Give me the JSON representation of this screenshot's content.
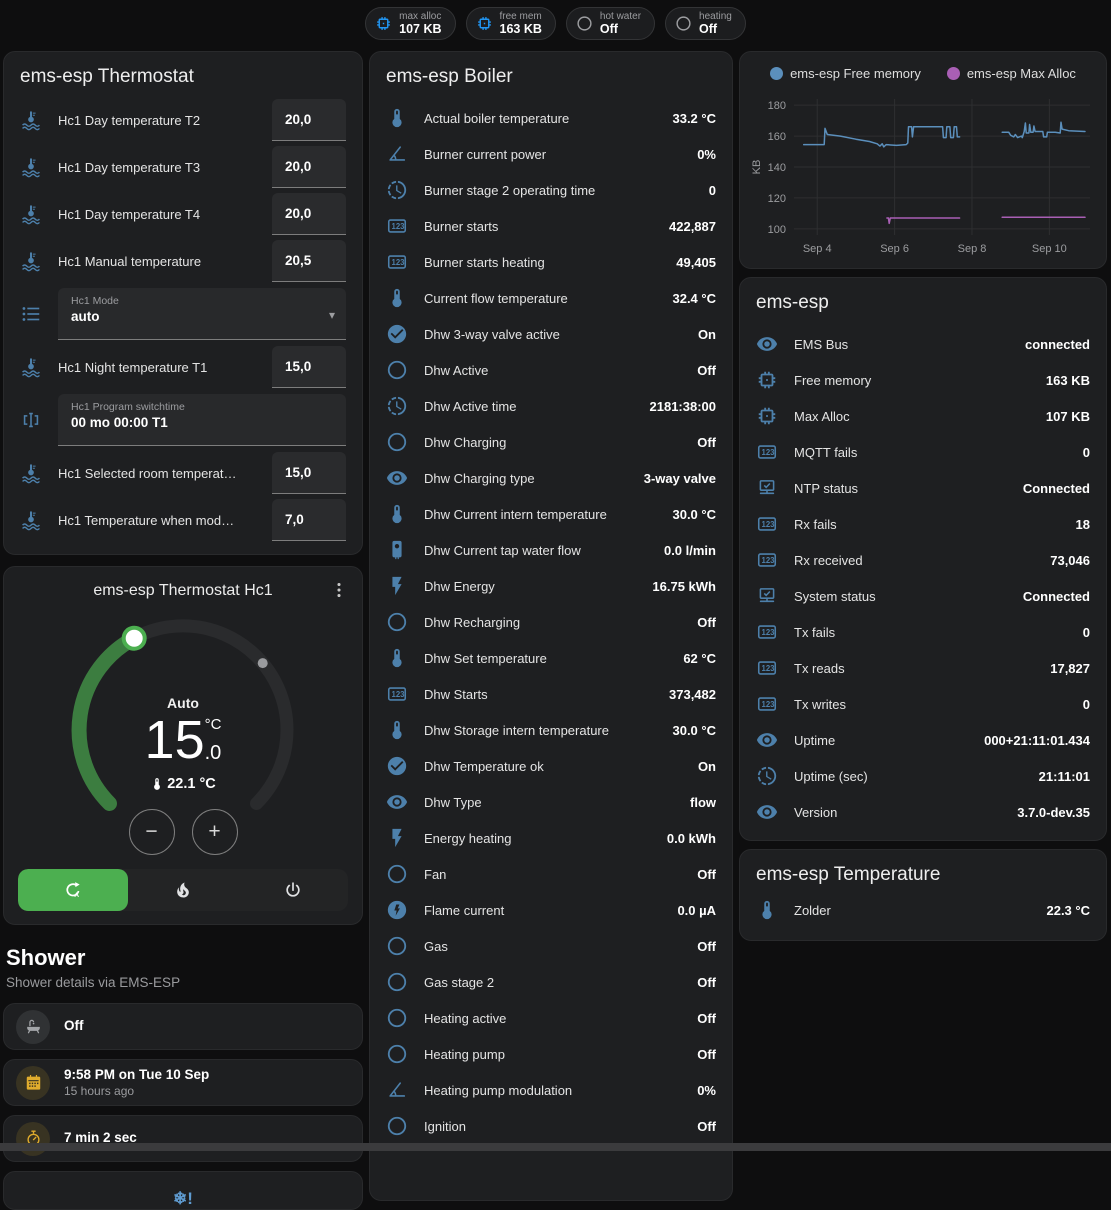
{
  "chips": [
    {
      "icon": "memory",
      "icon_color": "#2196f3",
      "label": "max alloc",
      "value": "107 KB"
    },
    {
      "icon": "memory",
      "icon_color": "#2196f3",
      "label": "free mem",
      "value": "163 KB"
    },
    {
      "icon": "circle-outline",
      "icon_color": "#9e9fa2",
      "label": "hot water",
      "value": "Off"
    },
    {
      "icon": "circle-outline",
      "icon_color": "#9e9fa2",
      "label": "heating",
      "value": "Off"
    }
  ],
  "thermostat_card": {
    "title": "ems-esp Thermostat",
    "rows": [
      {
        "type": "number",
        "icon": "coolant-thermometer",
        "label": "Hc1 Day temperature T2",
        "value": "20,0"
      },
      {
        "type": "number",
        "icon": "coolant-thermometer",
        "label": "Hc1 Day temperature T3",
        "value": "20,0"
      },
      {
        "type": "number",
        "icon": "coolant-thermometer",
        "label": "Hc1 Day temperature T4",
        "value": "20,0"
      },
      {
        "type": "number",
        "icon": "coolant-thermometer",
        "label": "Hc1 Manual temperature",
        "value": "20,5"
      },
      {
        "type": "select",
        "icon": "list",
        "label": "Hc1 Mode",
        "value": "auto"
      },
      {
        "type": "number",
        "icon": "coolant-thermometer",
        "label": "Hc1 Night temperature T1",
        "value": "15,0"
      },
      {
        "type": "text",
        "icon": "switchtime",
        "label": "Hc1 Program switchtime",
        "value": "00 mo 00:00 T1"
      },
      {
        "type": "number",
        "icon": "coolant-thermometer",
        "label": "Hc1 Selected room temperat…",
        "value": "15,0"
      },
      {
        "type": "number",
        "icon": "coolant-thermometer",
        "label": "Hc1 Temperature when mod…",
        "value": "7,0"
      }
    ]
  },
  "dial_card": {
    "title": "ems-esp Thermostat Hc1",
    "mode_label": "Auto",
    "target_int": "15",
    "target_unit": "°C",
    "target_frac": ".0",
    "current_icon": "thermometer",
    "current_temp": "22.1 °C",
    "decrease_label": "−",
    "increase_label": "+",
    "modes": [
      {
        "icon": "autorenew",
        "active": true
      },
      {
        "icon": "fire"
      },
      {
        "icon": "power"
      }
    ]
  },
  "shower": {
    "title": "Shower",
    "subtitle": "Shower details via EMS-ESP",
    "rows": [
      {
        "icon": "bathtub",
        "icon_color": "#a2a5a8",
        "circle_color": "#303234",
        "value": "Off",
        "sub": ""
      },
      {
        "icon": "calendar",
        "icon_color": "#e0ac2d",
        "circle_color": "#383322",
        "value": "9:58 PM on Tue 10 Sep",
        "sub": "15 hours ago"
      },
      {
        "icon": "timer",
        "icon_color": "#e0ac2d",
        "circle_color": "#383322",
        "value": "7 min 2 sec",
        "sub": ""
      }
    ],
    "alert_icon": "snowflake-alert"
  },
  "boiler_card": {
    "title": "ems-esp Boiler",
    "rows": [
      {
        "icon": "thermometer",
        "label": "Actual boiler temperature",
        "value": "33.2 °C"
      },
      {
        "icon": "angle",
        "label": "Burner current power",
        "value": "0%"
      },
      {
        "icon": "progress-clock",
        "label": "Burner stage 2 operating time",
        "value": "0"
      },
      {
        "icon": "counter",
        "label": "Burner starts",
        "value": "422,887"
      },
      {
        "icon": "counter",
        "label": "Burner starts heating",
        "value": "49,405"
      },
      {
        "icon": "thermometer",
        "label": "Current flow temperature",
        "value": "32.4 °C"
      },
      {
        "icon": "check-circle",
        "label": "Dhw 3-way valve active",
        "value": "On"
      },
      {
        "icon": "circle-outline",
        "label": "Dhw Active",
        "value": "Off"
      },
      {
        "icon": "progress-clock",
        "label": "Dhw Active time",
        "value": "2181:38:00"
      },
      {
        "icon": "circle-outline",
        "label": "Dhw Charging",
        "value": "Off"
      },
      {
        "icon": "eye",
        "label": "Dhw Charging type",
        "value": "3-way valve"
      },
      {
        "icon": "thermometer",
        "label": "Dhw Current intern temperature",
        "value": "30.0 °C"
      },
      {
        "icon": "water-boiler",
        "label": "Dhw Current tap water flow",
        "value": "0.0 l/min"
      },
      {
        "icon": "flash",
        "label": "Dhw Energy",
        "value": "16.75 kWh"
      },
      {
        "icon": "circle-outline",
        "label": "Dhw Recharging",
        "value": "Off"
      },
      {
        "icon": "thermometer",
        "label": "Dhw Set temperature",
        "value": "62 °C"
      },
      {
        "icon": "counter",
        "label": "Dhw Starts",
        "value": "373,482"
      },
      {
        "icon": "thermometer",
        "label": "Dhw Storage intern temperature",
        "value": "30.0 °C"
      },
      {
        "icon": "check-circle",
        "label": "Dhw Temperature ok",
        "value": "On"
      },
      {
        "icon": "eye",
        "label": "Dhw Type",
        "value": "flow"
      },
      {
        "icon": "flash",
        "label": "Energy heating",
        "value": "0.0 kWh"
      },
      {
        "icon": "circle-outline",
        "label": "Fan",
        "value": "Off"
      },
      {
        "icon": "flash-circle",
        "label": "Flame current",
        "value": "0.0 µA"
      },
      {
        "icon": "circle-outline",
        "label": "Gas",
        "value": "Off"
      },
      {
        "icon": "circle-outline",
        "label": "Gas stage 2",
        "value": "Off"
      },
      {
        "icon": "circle-outline",
        "label": "Heating active",
        "value": "Off"
      },
      {
        "icon": "circle-outline",
        "label": "Heating pump",
        "value": "Off"
      },
      {
        "icon": "angle",
        "label": "Heating pump modulation",
        "value": "0%"
      },
      {
        "icon": "circle-outline",
        "label": "Ignition",
        "value": "Off"
      }
    ]
  },
  "chart_data": {
    "type": "line",
    "title": "",
    "xlabel": "",
    "ylabel": "KB",
    "ylim": [
      96,
      184
    ],
    "xlim": [
      3.4,
      11.05
    ],
    "y_ticks": [
      100,
      120,
      140,
      160,
      180
    ],
    "x_ticks": [
      {
        "v": 4,
        "label": "Sep 4"
      },
      {
        "v": 6,
        "label": "Sep 6"
      },
      {
        "v": 8,
        "label": "Sep 8"
      },
      {
        "v": 10,
        "label": "Sep 10"
      }
    ],
    "grid": true,
    "legend_position": "top",
    "series": [
      {
        "name": "ems-esp Free memory",
        "color": "#5b8fbc",
        "segments": [
          [
            [
              3.65,
              154.5
            ],
            [
              4.18,
              154.5
            ],
            [
              4.2,
              165
            ],
            [
              4.26,
              161
            ],
            [
              4.6,
              160
            ],
            [
              5.0,
              158
            ],
            [
              5.35,
              156.5
            ],
            [
              5.55,
              155
            ],
            [
              5.62,
              153.5
            ],
            [
              5.68,
              155
            ],
            [
              5.72,
              153
            ],
            [
              5.78,
              154.5
            ],
            [
              6.05,
              154
            ],
            [
              6.3,
              154.5
            ],
            [
              6.34,
              155.5
            ],
            [
              6.36,
              166
            ],
            [
              6.44,
              166
            ],
            [
              6.46,
              159.5
            ],
            [
              6.49,
              166
            ],
            [
              7.1,
              166
            ],
            [
              7.24,
              166
            ],
            [
              7.26,
              159
            ],
            [
              7.33,
              159
            ],
            [
              7.35,
              166
            ],
            [
              7.43,
              166
            ],
            [
              7.45,
              159
            ],
            [
              7.52,
              159
            ],
            [
              7.54,
              166
            ],
            [
              7.6,
              166
            ],
            [
              7.62,
              159.5
            ],
            [
              7.68,
              159.5
            ]
          ],
          [
            [
              8.78,
              162.5
            ],
            [
              8.95,
              162.5
            ],
            [
              9.0,
              160.5
            ],
            [
              9.08,
              159.5
            ],
            [
              9.12,
              161
            ],
            [
              9.18,
              159
            ],
            [
              9.28,
              160
            ],
            [
              9.3,
              159
            ],
            [
              9.35,
              163
            ],
            [
              9.38,
              168.5
            ],
            [
              9.4,
              162
            ],
            [
              9.47,
              162
            ],
            [
              9.49,
              167.5
            ],
            [
              9.52,
              162.5
            ],
            [
              9.58,
              162.5
            ],
            [
              9.6,
              166.5
            ],
            [
              9.63,
              163
            ],
            [
              9.72,
              163
            ],
            [
              9.83,
              163
            ],
            [
              9.85,
              159.5
            ],
            [
              9.93,
              159.5
            ],
            [
              9.95,
              162.5
            ],
            [
              10.15,
              162.5
            ],
            [
              10.28,
              162
            ],
            [
              10.3,
              169
            ],
            [
              10.33,
              164.5
            ],
            [
              10.5,
              163.5
            ],
            [
              10.92,
              163
            ]
          ]
        ]
      },
      {
        "name": "ems-esp Max Alloc",
        "color": "#a95fb5",
        "segments": [
          [
            [
              5.8,
              107
            ],
            [
              5.84,
              107
            ],
            [
              5.86,
              103.5
            ],
            [
              5.89,
              107
            ],
            [
              7.68,
              107
            ]
          ],
          [
            [
              8.78,
              107.5
            ],
            [
              10.92,
              107.5
            ]
          ]
        ]
      }
    ]
  },
  "status_card": {
    "title": "ems-esp",
    "rows": [
      {
        "icon": "eye",
        "label": "EMS Bus",
        "value": "connected"
      },
      {
        "icon": "memory",
        "label": "Free memory",
        "value": "163 KB"
      },
      {
        "icon": "memory",
        "label": "Max Alloc",
        "value": "107 KB"
      },
      {
        "icon": "counter",
        "label": "MQTT fails",
        "value": "0"
      },
      {
        "icon": "network-check",
        "label": "NTP status",
        "value": "Connected"
      },
      {
        "icon": "counter",
        "label": "Rx fails",
        "value": "18"
      },
      {
        "icon": "counter",
        "label": "Rx received",
        "value": "73,046"
      },
      {
        "icon": "network-check",
        "label": "System status",
        "value": "Connected"
      },
      {
        "icon": "counter",
        "label": "Tx fails",
        "value": "0"
      },
      {
        "icon": "counter",
        "label": "Tx reads",
        "value": "17,827"
      },
      {
        "icon": "counter",
        "label": "Tx writes",
        "value": "0"
      },
      {
        "icon": "eye",
        "label": "Uptime",
        "value": "000+21:11:01.434"
      },
      {
        "icon": "progress-clock",
        "label": "Uptime (sec)",
        "value": "21:11:01"
      },
      {
        "icon": "eye",
        "label": "Version",
        "value": "3.7.0-dev.35"
      }
    ]
  },
  "temp_card": {
    "title": "ems-esp Temperature",
    "rows": [
      {
        "icon": "thermometer",
        "label": "Zolder",
        "value": "22.3 °C"
      }
    ]
  }
}
